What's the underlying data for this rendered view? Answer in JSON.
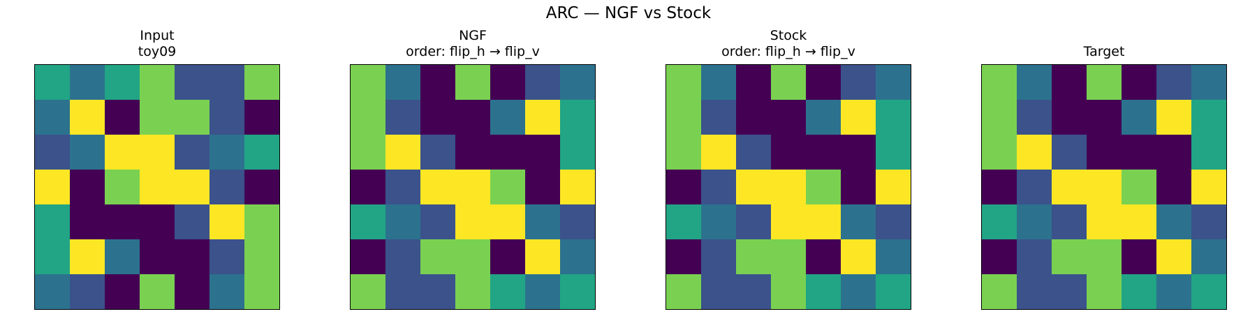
{
  "figure": {
    "title": "ARC — NGF vs Stock"
  },
  "chart_data": [
    {
      "type": "heatmap",
      "title": [
        "Input",
        "toy09"
      ],
      "colors": [
        "#440154",
        "#3b528b",
        "#2c728e",
        "#21a585",
        "#7ad151",
        "#fde725"
      ],
      "grid": [
        [
          3,
          2,
          3,
          4,
          1,
          1,
          4
        ],
        [
          2,
          5,
          0,
          4,
          4,
          1,
          0
        ],
        [
          1,
          2,
          5,
          5,
          1,
          2,
          3
        ],
        [
          5,
          0,
          4,
          5,
          5,
          1,
          0
        ],
        [
          3,
          0,
          0,
          0,
          1,
          5,
          4
        ],
        [
          3,
          5,
          2,
          0,
          0,
          1,
          4
        ],
        [
          2,
          1,
          0,
          4,
          0,
          2,
          4
        ]
      ]
    },
    {
      "type": "heatmap",
      "title": [
        "NGF",
        "order: flip_h → flip_v"
      ],
      "colors": [
        "#440154",
        "#3b528b",
        "#2c728e",
        "#21a585",
        "#7ad151",
        "#fde725"
      ],
      "grid": [
        [
          4,
          2,
          0,
          4,
          0,
          1,
          2
        ],
        [
          4,
          1,
          0,
          0,
          2,
          5,
          3
        ],
        [
          4,
          5,
          1,
          0,
          0,
          0,
          3
        ],
        [
          0,
          1,
          5,
          5,
          4,
          0,
          5
        ],
        [
          3,
          2,
          1,
          5,
          5,
          2,
          1
        ],
        [
          0,
          1,
          4,
          4,
          0,
          5,
          2
        ],
        [
          4,
          1,
          1,
          4,
          3,
          2,
          3
        ]
      ]
    },
    {
      "type": "heatmap",
      "title": [
        "Stock",
        "order: flip_h → flip_v"
      ],
      "colors": [
        "#440154",
        "#3b528b",
        "#2c728e",
        "#21a585",
        "#7ad151",
        "#fde725"
      ],
      "grid": [
        [
          4,
          2,
          0,
          4,
          0,
          1,
          2
        ],
        [
          4,
          1,
          0,
          0,
          2,
          5,
          3
        ],
        [
          4,
          5,
          1,
          0,
          0,
          0,
          3
        ],
        [
          0,
          1,
          5,
          5,
          4,
          0,
          5
        ],
        [
          3,
          2,
          1,
          5,
          5,
          2,
          1
        ],
        [
          0,
          1,
          4,
          4,
          0,
          5,
          2
        ],
        [
          4,
          1,
          1,
          4,
          3,
          2,
          3
        ]
      ]
    },
    {
      "type": "heatmap",
      "title": [
        "Target"
      ],
      "colors": [
        "#440154",
        "#3b528b",
        "#2c728e",
        "#21a585",
        "#7ad151",
        "#fde725"
      ],
      "grid": [
        [
          4,
          2,
          0,
          4,
          0,
          1,
          2
        ],
        [
          4,
          1,
          0,
          0,
          2,
          5,
          3
        ],
        [
          4,
          5,
          1,
          0,
          0,
          0,
          3
        ],
        [
          0,
          1,
          5,
          5,
          4,
          0,
          5
        ],
        [
          3,
          2,
          1,
          5,
          5,
          2,
          1
        ],
        [
          0,
          1,
          4,
          4,
          0,
          5,
          2
        ],
        [
          4,
          1,
          1,
          4,
          3,
          2,
          3
        ]
      ]
    }
  ]
}
